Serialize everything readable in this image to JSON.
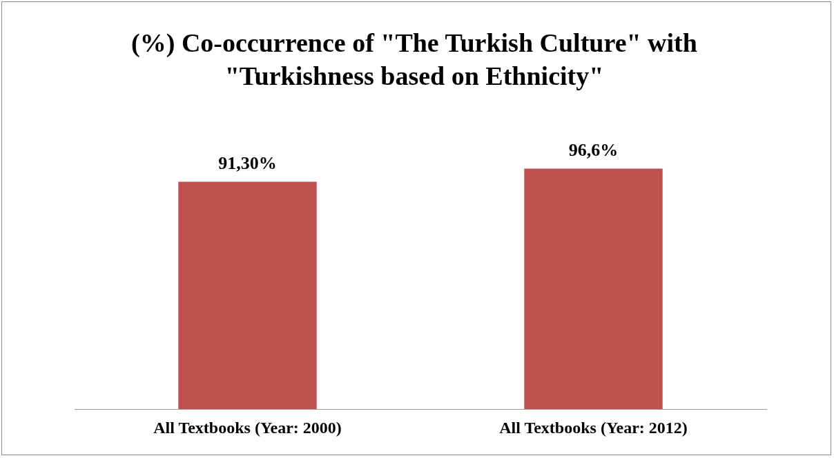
{
  "chart_data": {
    "type": "bar",
    "title": "(%) Co-occurrence of \"The Turkish Culture\" with \"Turkishness based on Ethnicity\"",
    "categories": [
      "All Textbooks (Year: 2000)",
      "All Textbooks (Year: 2012)"
    ],
    "values": [
      91.3,
      96.6
    ],
    "value_labels": [
      "91,30%",
      "96,6%"
    ],
    "color": "#c0504d",
    "relative": false,
    "grid": false,
    "legend": false
  }
}
